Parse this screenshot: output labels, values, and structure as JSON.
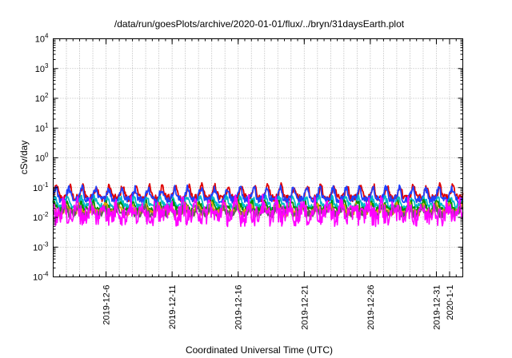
{
  "chart_data": {
    "type": "line",
    "title": "/data/run/goesPlots/archive/2020-01-01/flux/../bryn/31daysEarth.plot",
    "xlabel": "Coordinated Universal Time (UTC)",
    "ylabel": "cSv/day",
    "y_scale": "log",
    "ylim": [
      0.0001,
      10000
    ],
    "y_ticks": [
      {
        "base": "10",
        "exp": "-4"
      },
      {
        "base": "10",
        "exp": "-3"
      },
      {
        "base": "10",
        "exp": "-2"
      },
      {
        "base": "10",
        "exp": "-1"
      },
      {
        "base": "10",
        "exp": "0"
      },
      {
        "base": "10",
        "exp": "1"
      },
      {
        "base": "10",
        "exp": "2"
      },
      {
        "base": "10",
        "exp": "3"
      },
      {
        "base": "10",
        "exp": "4"
      }
    ],
    "xlim": [
      "2019-12-02",
      "2020-01-02"
    ],
    "x_ticks": [
      "2019-12-6",
      "2019-12-11",
      "2019-12-16",
      "2019-12-21",
      "2019-12-26",
      "2019-12-31",
      "2020-1-1"
    ],
    "x_tick_dates": [
      "2019-12-06",
      "2019-12-11",
      "2019-12-16",
      "2019-12-21",
      "2019-12-26",
      "2019-12-31",
      "2020-01-01"
    ],
    "x_minor_step_days": 0.5,
    "grid": true,
    "legend": "none",
    "series": [
      {
        "color": "#e00000",
        "base": 0.045,
        "peak": 0.11,
        "noise": 0.12
      },
      {
        "color": "#2040ff",
        "base": 0.04,
        "peak": 0.095,
        "noise": 0.12
      },
      {
        "color": "#00b8c8",
        "base": 0.024,
        "peak": 0.045,
        "noise": 0.1
      },
      {
        "color": "#009000",
        "base": 0.018,
        "peak": 0.032,
        "noise": 0.1
      },
      {
        "color": "#e0a000",
        "base": 0.014,
        "peak": 0.026,
        "noise": 0.12
      },
      {
        "color": "#606060",
        "base": 0.013,
        "peak": 0.022,
        "noise": 0.12
      },
      {
        "color": "#ff00ff",
        "base": 0.011,
        "peak": 0.028,
        "noise": 0.35
      }
    ]
  }
}
